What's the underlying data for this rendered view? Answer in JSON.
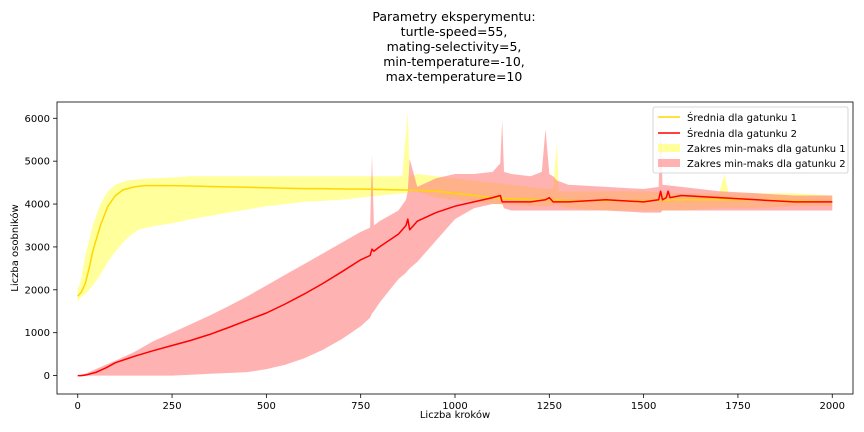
{
  "chart_data": {
    "type": "line",
    "title_lines": [
      "Parametry eksperymentu:",
      "turtle-speed=55,",
      "mating-selectivity=5,",
      "min-temperature=-10,",
      "max-temperature=10"
    ],
    "xlabel": "Liczba kroków",
    "ylabel": "Liczba osobników",
    "xlim": [
      -55,
      2055
    ],
    "ylim": [
      -430,
      6380
    ],
    "xticks": [
      0,
      250,
      500,
      750,
      1000,
      1250,
      1500,
      1750,
      2000
    ],
    "yticks": [
      0,
      1000,
      2000,
      3000,
      4000,
      5000,
      6000
    ],
    "grid": false,
    "legend_position": "top-right",
    "legend": [
      "Średnia dla gatunku 1",
      "Średnia dla gatunku 2",
      "Zakres min-maks dla gatunku 1",
      "Zakres min-maks dla gatunku 2"
    ],
    "series": [
      {
        "kind": "band",
        "color": "#ffff66",
        "opacity": 0.65,
        "x": [
          0,
          5,
          10,
          20,
          40,
          60,
          80,
          100,
          130,
          160,
          200,
          250,
          300,
          400,
          500,
          600,
          700,
          800,
          860,
          875,
          880,
          900,
          950,
          1000,
          1050,
          1100,
          1200,
          1260,
          1270,
          1275,
          1300,
          1400,
          1500,
          1600,
          1700,
          1715,
          1725,
          1800,
          1900,
          2000
        ],
        "low": [
          1700,
          1800,
          1850,
          1900,
          2100,
          2350,
          2650,
          2900,
          3200,
          3400,
          3480,
          3550,
          3650,
          3800,
          3950,
          4050,
          4100,
          4200,
          4250,
          4250,
          4300,
          4300,
          4150,
          4100,
          4050,
          4000,
          3950,
          3950,
          4000,
          3950,
          3900,
          3850,
          3850,
          3850,
          3900,
          3900,
          3900,
          3900,
          3950,
          3950
        ],
        "high": [
          2050,
          2100,
          2300,
          2800,
          3500,
          4000,
          4300,
          4450,
          4550,
          4580,
          4600,
          4620,
          4650,
          4650,
          4650,
          4650,
          4650,
          4650,
          4650,
          6150,
          4650,
          4700,
          4650,
          4600,
          4550,
          4500,
          4400,
          4350,
          5450,
          4300,
          4300,
          4300,
          4300,
          4250,
          4250,
          4700,
          4250,
          4250,
          4250,
          4200
        ]
      },
      {
        "kind": "band",
        "color": "#ff7f7f",
        "opacity": 0.6,
        "x": [
          0,
          25,
          50,
          100,
          150,
          200,
          250,
          300,
          350,
          400,
          450,
          500,
          550,
          600,
          650,
          700,
          750,
          775,
          780,
          785,
          800,
          850,
          870,
          875,
          880,
          900,
          950,
          1000,
          1050,
          1100,
          1120,
          1125,
          1130,
          1150,
          1200,
          1230,
          1240,
          1250,
          1260,
          1270,
          1300,
          1400,
          1500,
          1540,
          1545,
          1550,
          1600,
          1700,
          1800,
          1900,
          2000
        ],
        "low": [
          0,
          0,
          0,
          0,
          0,
          0,
          0,
          20,
          40,
          60,
          80,
          150,
          250,
          400,
          600,
          850,
          1150,
          1350,
          1450,
          1500,
          1700,
          2250,
          2400,
          2450,
          2500,
          2650,
          3150,
          3650,
          3900,
          4000,
          4000,
          4000,
          3900,
          3850,
          3850,
          3850,
          3850,
          3850,
          3850,
          3850,
          3850,
          3850,
          3800,
          3800,
          3800,
          3850,
          3850,
          3850,
          3850,
          3850,
          3850
        ],
        "high": [
          0,
          60,
          160,
          350,
          550,
          800,
          1000,
          1200,
          1400,
          1620,
          1850,
          2100,
          2350,
          2600,
          2850,
          3100,
          3350,
          3450,
          5150,
          3500,
          3600,
          3850,
          4100,
          4300,
          5050,
          4400,
          4600,
          4700,
          4700,
          4750,
          4950,
          5950,
          4750,
          4700,
          4650,
          4750,
          5750,
          4700,
          4650,
          4550,
          4450,
          4400,
          4350,
          4400,
          5900,
          4450,
          4400,
          4300,
          4250,
          4200,
          4200
        ]
      },
      {
        "kind": "line",
        "name": "Średnia dla gatunku 1",
        "color": "#ffd700",
        "x": [
          0,
          5,
          10,
          20,
          30,
          40,
          60,
          80,
          100,
          120,
          150,
          175,
          200,
          250,
          300,
          350,
          400,
          450,
          500,
          550,
          600,
          650,
          700,
          750,
          800,
          850,
          900,
          950,
          1000,
          1050,
          1100,
          1150,
          1200,
          1250,
          1300,
          1400,
          1500,
          1600,
          1700,
          1800,
          1900,
          2000
        ],
        "y": [
          1850,
          1900,
          1950,
          2150,
          2500,
          2900,
          3500,
          3950,
          4200,
          4330,
          4400,
          4430,
          4430,
          4430,
          4420,
          4410,
          4400,
          4390,
          4380,
          4370,
          4360,
          4360,
          4350,
          4350,
          4340,
          4330,
          4320,
          4300,
          4250,
          4200,
          4150,
          4120,
          4100,
          4100,
          4080,
          4080,
          4080,
          4100,
          4100,
          4100,
          4080,
          4050
        ]
      },
      {
        "kind": "line",
        "name": "Średnia dla gatunku 2",
        "color": "#ff0000",
        "x": [
          0,
          10,
          25,
          50,
          75,
          100,
          150,
          200,
          250,
          300,
          350,
          400,
          450,
          500,
          550,
          600,
          650,
          700,
          750,
          775,
          780,
          785,
          800,
          850,
          870,
          875,
          880,
          900,
          950,
          1000,
          1050,
          1100,
          1120,
          1125,
          1130,
          1200,
          1240,
          1250,
          1260,
          1300,
          1400,
          1500,
          1540,
          1545,
          1550,
          1560,
          1565,
          1570,
          1600,
          1700,
          1800,
          1900,
          2000
        ],
        "y": [
          0,
          0,
          20,
          80,
          180,
          300,
          450,
          580,
          700,
          820,
          960,
          1120,
          1290,
          1460,
          1670,
          1900,
          2150,
          2420,
          2700,
          2800,
          2950,
          2900,
          3000,
          3300,
          3500,
          3650,
          3400,
          3600,
          3800,
          3950,
          4050,
          4150,
          4200,
          4050,
          4050,
          4050,
          4100,
          4150,
          4050,
          4050,
          4100,
          4050,
          4100,
          4300,
          4100,
          4150,
          4300,
          4150,
          4200,
          4150,
          4100,
          4050,
          4050
        ]
      }
    ]
  }
}
